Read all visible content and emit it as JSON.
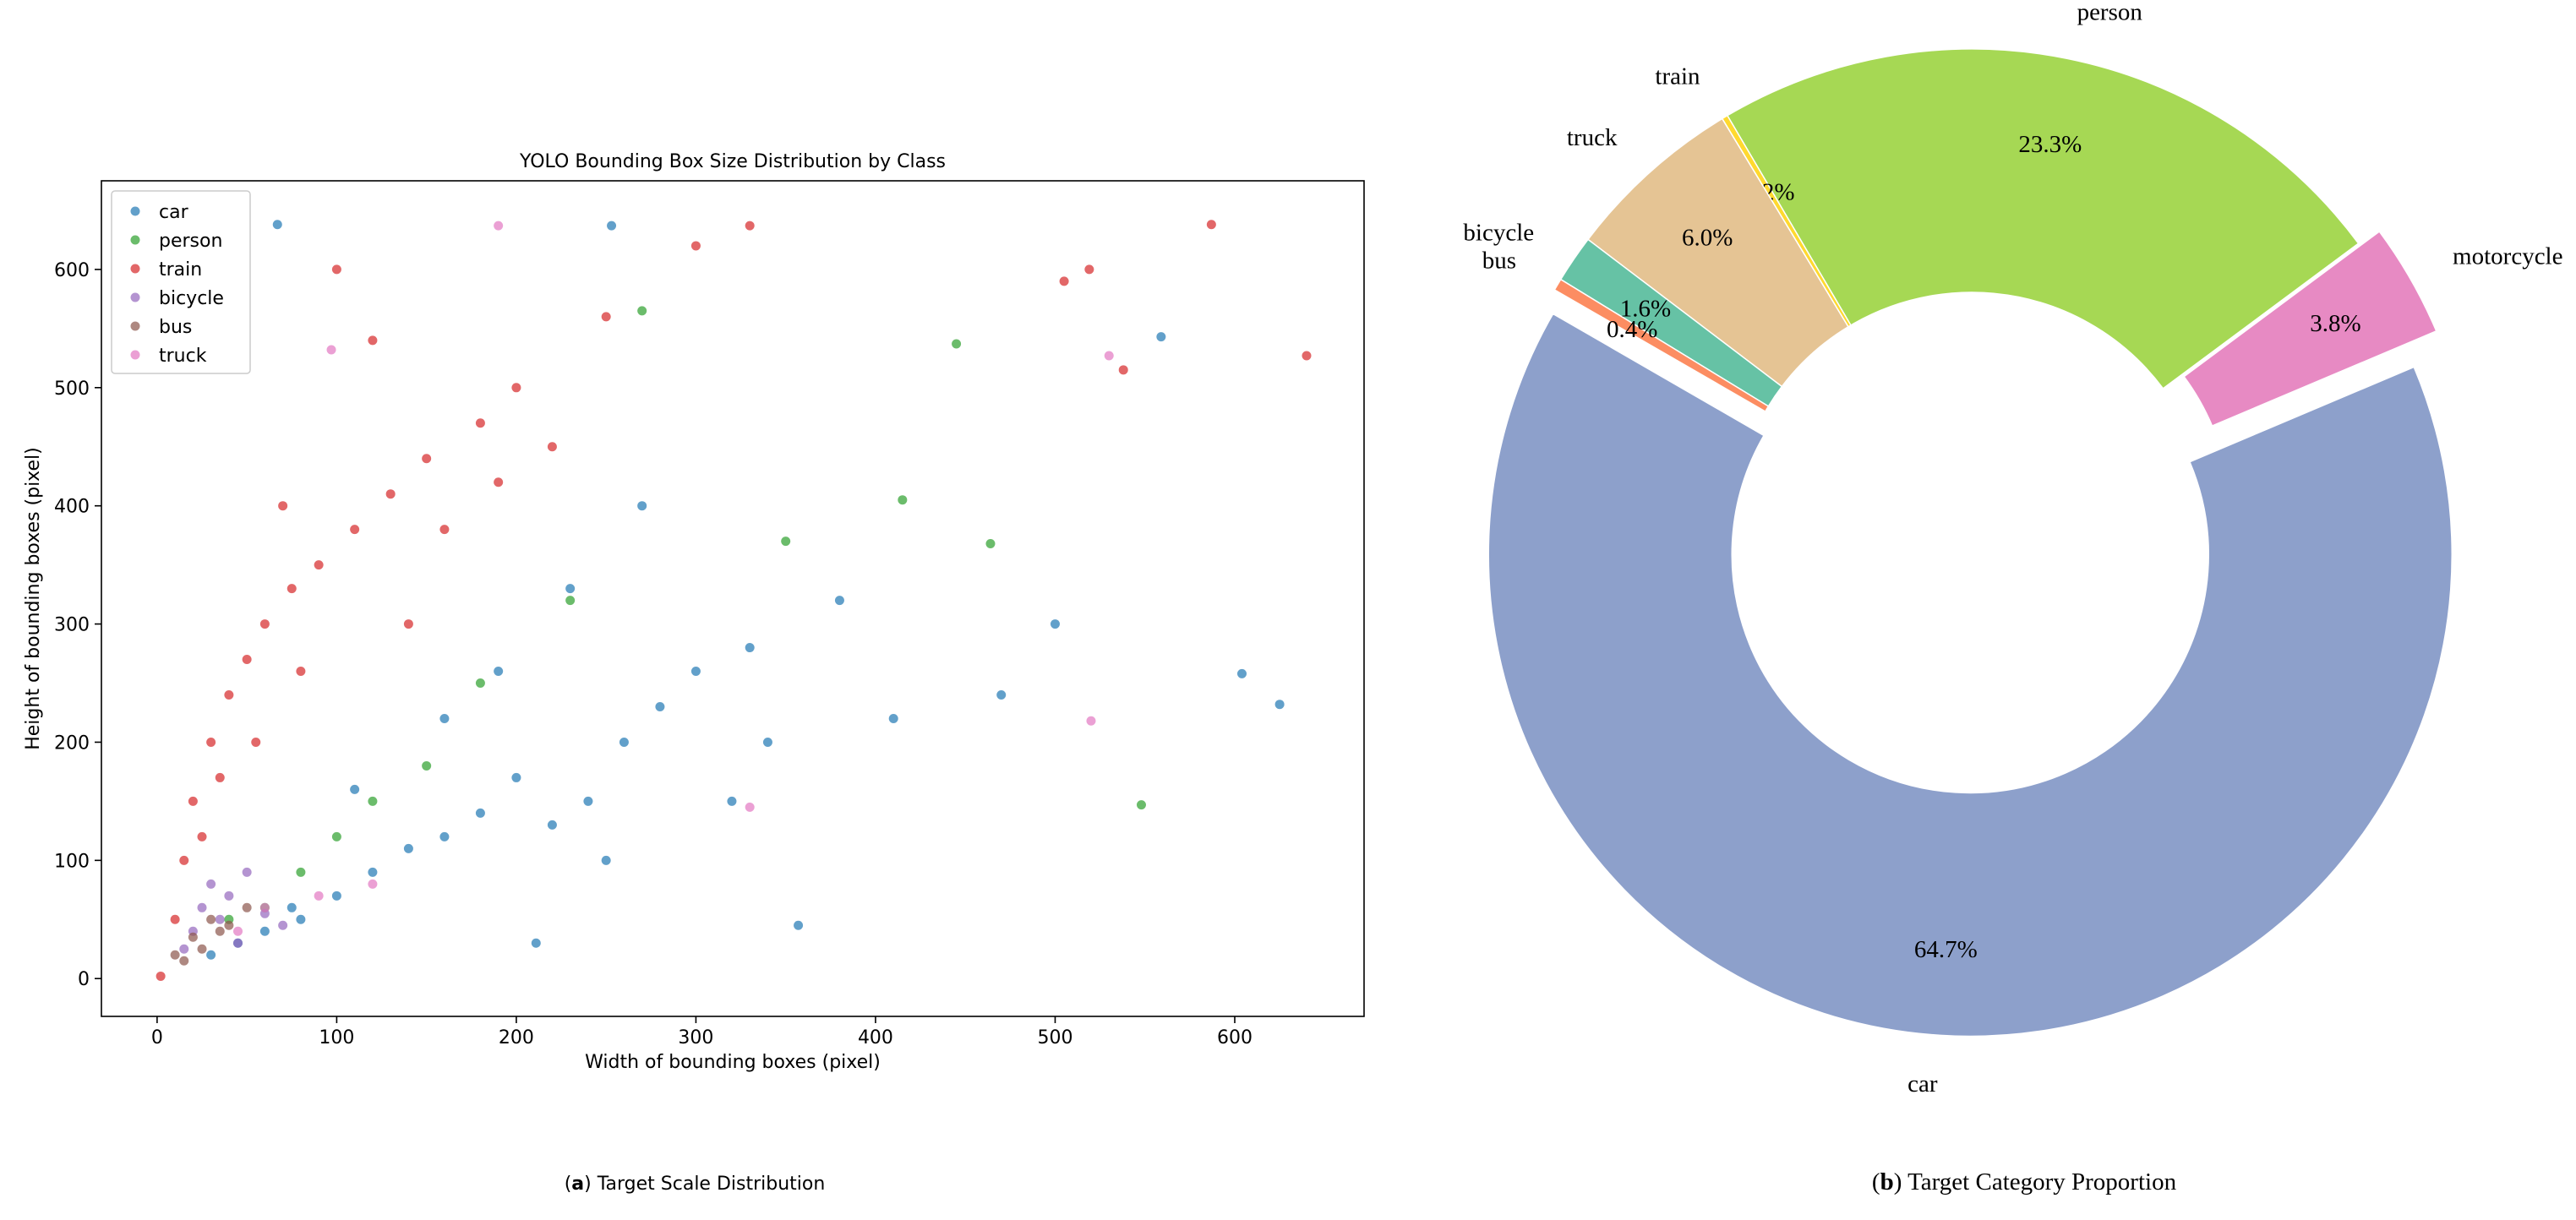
{
  "chart_data": [
    {
      "type": "scatter",
      "title": "YOLO Bounding Box Size Distribution by Class",
      "x_label": "Width of bounding boxes (pixel)",
      "y_label": "Height of bounding boxes (pixel)",
      "xlim": [
        -31,
        672
      ],
      "ylim": [
        -32,
        675
      ],
      "xticks": [
        0,
        100,
        200,
        300,
        400,
        500,
        600
      ],
      "yticks": [
        0,
        100,
        200,
        300,
        400,
        500,
        600
      ],
      "legend": "upper left",
      "caption": [
        "(",
        "a",
        ") Target Scale Distribution"
      ],
      "series": [
        {
          "name": "car",
          "color": "#1f77b4",
          "x": [
            67,
            253,
            559,
            604,
            625,
            357,
            211,
            500,
            470,
            410,
            380,
            330,
            300,
            280,
            260,
            240,
            220,
            200,
            180,
            160,
            140,
            120,
            100,
            80,
            60,
            45,
            30,
            250,
            320,
            160,
            190,
            230,
            270,
            340,
            110,
            75
          ],
          "values": [
            638,
            637,
            543,
            258,
            232,
            45,
            30,
            300,
            240,
            220,
            320,
            280,
            260,
            230,
            200,
            150,
            130,
            170,
            140,
            120,
            110,
            90,
            70,
            50,
            40,
            30,
            20,
            100,
            150,
            220,
            260,
            330,
            400,
            200,
            160,
            60
          ]
        },
        {
          "name": "person",
          "color": "#2ca02c",
          "x": [
            548,
            445,
            464,
            270,
            180,
            150,
            120,
            100,
            80,
            60,
            230,
            350,
            415,
            40
          ],
          "values": [
            147,
            537,
            368,
            565,
            250,
            180,
            150,
            120,
            90,
            60,
            320,
            370,
            405,
            50
          ]
        },
        {
          "name": "train",
          "color": "#d62728",
          "x": [
            587,
            640,
            519,
            538,
            505,
            330,
            300,
            250,
            200,
            180,
            150,
            130,
            110,
            90,
            75,
            60,
            50,
            40,
            30,
            20,
            15,
            10,
            100,
            120,
            160,
            220,
            80,
            55,
            35,
            25,
            70,
            140,
            190,
            2
          ],
          "values": [
            638,
            527,
            600,
            515,
            590,
            637,
            620,
            560,
            500,
            470,
            440,
            410,
            380,
            350,
            330,
            300,
            270,
            240,
            200,
            150,
            100,
            50,
            600,
            540,
            380,
            450,
            260,
            200,
            170,
            120,
            400,
            300,
            420,
            2
          ]
        },
        {
          "name": "bicycle",
          "color": "#9467bd",
          "x": [
            20,
            25,
            30,
            35,
            40,
            45,
            50,
            60,
            15,
            70
          ],
          "values": [
            40,
            60,
            80,
            50,
            70,
            30,
            90,
            55,
            25,
            45
          ]
        },
        {
          "name": "bus",
          "color": "#8c564b",
          "x": [
            10,
            20,
            30,
            40,
            50,
            25,
            35,
            15
          ],
          "values": [
            20,
            35,
            50,
            45,
            60,
            25,
            40,
            15
          ]
        },
        {
          "name": "truck",
          "color": "#e377c2",
          "x": [
            520,
            530,
            97,
            330,
            120,
            90,
            60,
            45,
            190
          ],
          "values": [
            218,
            527,
            532,
            145,
            80,
            70,
            60,
            40,
            637
          ]
        }
      ]
    },
    {
      "type": "pie",
      "categories": [
        "car",
        "motorcycle",
        "person",
        "train",
        "truck",
        "bicycle",
        "bus"
      ],
      "values": [
        64.7,
        3.8,
        23.3,
        0.2,
        6.0,
        1.6,
        0.4
      ],
      "value_labels": [
        "64.7%",
        "3.8%",
        "23.3%",
        "0.2%",
        "6.0%",
        "1.6%",
        "0.4%"
      ],
      "colors": [
        "#8da0cb",
        "#e78ac3",
        "#a6d854",
        "#ffd92f",
        "#e5c494",
        "#66c2a5",
        "#fc8d62"
      ],
      "explode": [
        0.05,
        0.05,
        0,
        0,
        0,
        0,
        0
      ],
      "startangle": 150,
      "caption": [
        "(",
        "b",
        ") Target Category Proportion"
      ]
    }
  ]
}
